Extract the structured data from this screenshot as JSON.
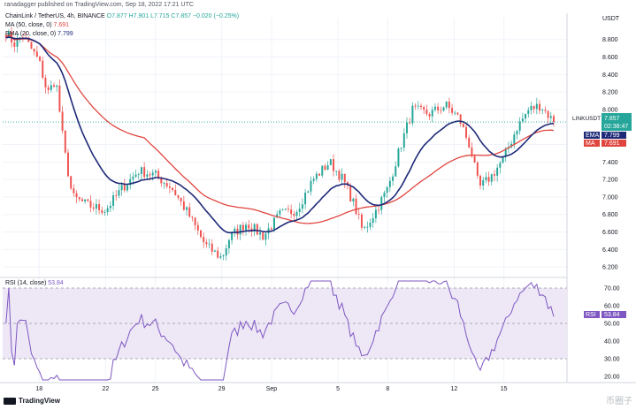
{
  "header": {
    "published": "ranadagger published on TradingView.com, Sep 18, 2022 17:21 UTC",
    "symbol_line": "ChainLink / TetherUS, 4h, BINANCE",
    "ohlc": "O7.877 H7.901 L7.715 C7.857 −0.020 (−0.25%)",
    "ma_label": "MA (50, close, 0)",
    "ma_value": "7.691",
    "ema_label": "EMA (20, close, 0)",
    "ema_value": "7.799",
    "rsi_label": "RSI (14, close)",
    "rsi_value": "53.84",
    "axis_unit": "USDT",
    "logo_text": "TradingView",
    "watermark": "币圈子"
  },
  "badges": {
    "price_symbol": "LINKUSDT",
    "price_value": "7.857",
    "countdown": "02:38:47",
    "ema_tag": "EMA",
    "ema_value": "7.799",
    "ma_tag": "MA",
    "ma_value": "7.691",
    "rsi_tag": "RSI",
    "rsi_value": "53.84"
  },
  "colors": {
    "bull": "#26a69a",
    "bear": "#ef5350",
    "ema": "#1e2a78",
    "ma": "#e0463f",
    "rsi": "#7e57c2",
    "rsi_band": "#ede7f6",
    "grid": "#f0f3fa"
  },
  "chart_data": {
    "type": "candlestick",
    "timeframe": "4h",
    "price_axis": {
      "ticks": [
        "8.800",
        "8.600",
        "8.400",
        "8.200",
        "8.000",
        "7.800",
        "7.600",
        "7.400",
        "7.200",
        "7.000",
        "6.800",
        "6.600",
        "6.400",
        "6.200"
      ],
      "range": [
        6.1,
        9.05
      ]
    },
    "rsi_axis": {
      "ticks": [
        "70.00",
        "60.00",
        "50.00",
        "40.00",
        "30.00",
        "20.00"
      ],
      "range": [
        17,
        75
      ],
      "upper_band": 70,
      "lower_band": 30
    },
    "x_axis": {
      "ticks": [
        {
          "label": "18",
          "day": 2
        },
        {
          "label": "22",
          "day": 6
        },
        {
          "label": "25",
          "day": 9
        },
        {
          "label": "29",
          "day": 13
        },
        {
          "label": "Sep",
          "day": 16
        },
        {
          "label": "5",
          "day": 20
        },
        {
          "label": "8",
          "day": 23
        },
        {
          "label": "12",
          "day": 27
        },
        {
          "label": "15",
          "day": 30
        }
      ],
      "range_days": [
        -0.2,
        33.8
      ]
    },
    "price_keypoints": [
      [
        0,
        8.88
      ],
      [
        0.5,
        8.75
      ],
      [
        1,
        8.85
      ],
      [
        2,
        8.55
      ],
      [
        2.5,
        8.18
      ],
      [
        3,
        8.35
      ],
      [
        3.5,
        7.55
      ],
      [
        4,
        7.0
      ],
      [
        5,
        6.9
      ],
      [
        6,
        6.85
      ],
      [
        7,
        7.1
      ],
      [
        8,
        7.3
      ],
      [
        9,
        7.25
      ],
      [
        10,
        7.1
      ],
      [
        11,
        6.8
      ],
      [
        12,
        6.45
      ],
      [
        13,
        6.3
      ],
      [
        13.5,
        6.55
      ],
      [
        14.5,
        6.7
      ],
      [
        15.5,
        6.55
      ],
      [
        16.5,
        6.8
      ],
      [
        17.5,
        6.85
      ],
      [
        18.5,
        7.2
      ],
      [
        19.5,
        7.4
      ],
      [
        20.3,
        7.2
      ],
      [
        21,
        6.9
      ],
      [
        21.5,
        6.6
      ],
      [
        22.3,
        6.85
      ],
      [
        23,
        7.1
      ],
      [
        23.8,
        7.6
      ],
      [
        24.5,
        8.0
      ],
      [
        25.5,
        7.95
      ],
      [
        26.5,
        8.05
      ],
      [
        27.3,
        7.9
      ],
      [
        28,
        7.55
      ],
      [
        28.5,
        7.1
      ],
      [
        29.3,
        7.25
      ],
      [
        30,
        7.45
      ],
      [
        30.8,
        7.8
      ],
      [
        31.5,
        8.0
      ],
      [
        32.2,
        8.05
      ],
      [
        33,
        7.857
      ]
    ],
    "last_close": 7.857,
    "ema20_last": 7.799,
    "ma50_last": 7.691,
    "rsi_last": 53.84,
    "candle_count": 195
  }
}
